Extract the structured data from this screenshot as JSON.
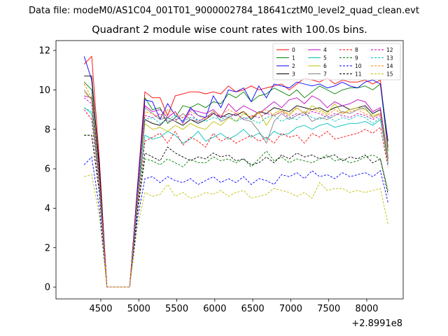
{
  "figure": {
    "suptitle": "Data file: modeM0/AS1C04_001T01_9000002784_18641cztM0_level2_quad_clean.evt",
    "offset_label": "+2.8991e8"
  },
  "chart_data": {
    "type": "line",
    "title": "Quadrant 2 module wise count rates with 100.0s bins.",
    "xlabel": "",
    "ylabel": "",
    "xlim": [
      3910,
      8480
    ],
    "ylim": [
      -0.6,
      12.5
    ],
    "xticks": [
      4500,
      5000,
      5500,
      6000,
      6500,
      7000,
      7500,
      8000
    ],
    "yticks": [
      0,
      2,
      4,
      6,
      8,
      10,
      12
    ],
    "grid": false,
    "legend": {
      "placement": "top-right",
      "columns": 4
    },
    "x": [
      4280,
      4380,
      4480,
      4580,
      4680,
      4780,
      4880,
      4980,
      5080,
      5180,
      5280,
      5380,
      5480,
      5580,
      5680,
      5780,
      5880,
      5980,
      6080,
      6180,
      6280,
      6380,
      6480,
      6580,
      6680,
      6780,
      6880,
      6980,
      7080,
      7180,
      7280,
      7380,
      7480,
      7580,
      7680,
      7780,
      7880,
      7980,
      8080,
      8180,
      8280
    ],
    "series": [
      {
        "name": "0",
        "color": "#ff0000",
        "dash": false,
        "values": [
          11.3,
          11.7,
          6.5,
          0,
          0,
          0,
          0,
          5.0,
          9.9,
          9.6,
          9.6,
          8.7,
          9.7,
          9.8,
          9.9,
          9.9,
          9.8,
          9.9,
          9.8,
          10.2,
          9.9,
          10.0,
          10.2,
          10.0,
          10.1,
          10.2,
          10.3,
          10.0,
          10.3,
          10.6,
          10.5,
          10.4,
          10.6,
          10.3,
          10.5,
          10.4,
          10.4,
          10.5,
          10.3,
          10.5,
          7.1
        ]
      },
      {
        "name": "1",
        "color": "#008000",
        "dash": false,
        "values": [
          10.4,
          10.0,
          5.6,
          0,
          0,
          0,
          0,
          4.8,
          9.6,
          9.0,
          9.1,
          8.3,
          8.6,
          9.2,
          9.1,
          9.3,
          9.1,
          9.4,
          9.3,
          9.8,
          9.6,
          9.9,
          9.4,
          9.7,
          9.8,
          10.1,
          9.9,
          9.7,
          10.0,
          9.6,
          9.9,
          10.2,
          10.0,
          9.8,
          10.0,
          10.1,
          10.1,
          10.2,
          10.0,
          10.3,
          6.9
        ]
      },
      {
        "name": "2",
        "color": "#0000ff",
        "dash": false,
        "values": [
          11.7,
          10.5,
          6.2,
          0,
          0,
          0,
          0,
          4.9,
          9.5,
          9.4,
          8.5,
          9.3,
          8.7,
          8.4,
          9.1,
          8.7,
          8.6,
          9.7,
          9.1,
          10.0,
          9.9,
          10.1,
          9.4,
          10.2,
          9.6,
          10.3,
          10.2,
          10.1,
          10.4,
          10.3,
          10.2,
          10.3,
          10.1,
          10.2,
          10.4,
          10.2,
          10.1,
          10.4,
          10.5,
          10.3,
          7.4
        ]
      },
      {
        "name": "3",
        "color": "#000000",
        "dash": false,
        "values": [
          10.7,
          10.7,
          6.0,
          0,
          0,
          0,
          0,
          4.6,
          8.5,
          8.3,
          8.2,
          8.6,
          8.4,
          8.2,
          8.5,
          8.3,
          8.5,
          8.8,
          8.6,
          8.8,
          8.7,
          8.9,
          8.5,
          8.9,
          8.8,
          9.1,
          9.0,
          8.9,
          9.2,
          9.1,
          9.0,
          9.1,
          8.9,
          9.1,
          9.2,
          9.0,
          9.1,
          9.2,
          8.8,
          9.0,
          6.6
        ]
      },
      {
        "name": "4",
        "color": "#bf00bf",
        "dash": false,
        "values": [
          9.7,
          9.6,
          5.5,
          0,
          0,
          0,
          0,
          4.5,
          9.2,
          8.9,
          9.0,
          8.6,
          8.9,
          8.3,
          9.0,
          8.9,
          8.8,
          9.0,
          8.6,
          9.3,
          8.9,
          9.2,
          9.0,
          8.8,
          9.1,
          9.4,
          9.1,
          9.5,
          9.6,
          9.3,
          9.7,
          9.5,
          9.1,
          9.4,
          9.2,
          9.3,
          9.5,
          9.4,
          8.9,
          9.1,
          6.5
        ]
      },
      {
        "name": "5",
        "color": "#00bfbf",
        "dash": false,
        "values": [
          9.1,
          8.8,
          5.3,
          0,
          0,
          0,
          0,
          4.3,
          7.7,
          7.5,
          7.6,
          7.9,
          7.7,
          7.3,
          7.5,
          7.9,
          7.4,
          7.6,
          7.8,
          7.5,
          7.7,
          8.0,
          7.6,
          7.8,
          7.5,
          7.9,
          7.7,
          7.8,
          8.1,
          8.2,
          8.0,
          8.2,
          8.3,
          8.1,
          8.2,
          8.3,
          8.3,
          8.4,
          8.2,
          8.5,
          6.3
        ]
      },
      {
        "name": "6",
        "color": "#bfbf00",
        "dash": false,
        "values": [
          9.9,
          9.5,
          5.4,
          0,
          0,
          0,
          0,
          4.4,
          8.3,
          8.0,
          8.1,
          7.9,
          8.2,
          8.0,
          8.3,
          8.1,
          8.0,
          8.4,
          8.2,
          8.6,
          8.4,
          8.8,
          8.6,
          8.9,
          8.2,
          8.8,
          9.0,
          8.7,
          9.1,
          8.8,
          9.2,
          9.0,
          8.8,
          9.3,
          8.8,
          9.0,
          9.1,
          9.0,
          8.7,
          8.8,
          6.4
        ]
      },
      {
        "name": "7",
        "color": "#808080",
        "dash": false,
        "values": [
          10.0,
          9.5,
          5.5,
          0,
          0,
          0,
          0,
          4.5,
          9.1,
          8.8,
          8.5,
          8.6,
          8.4,
          8.8,
          8.5,
          8.4,
          8.6,
          8.9,
          8.4,
          8.6,
          8.8,
          8.5,
          8.4,
          7.9,
          7.3,
          8.4,
          8.8,
          8.5,
          8.7,
          8.9,
          8.4,
          8.6,
          8.5,
          8.7,
          8.9,
          8.8,
          9.0,
          9.1,
          8.6,
          8.8,
          6.6
        ]
      },
      {
        "name": "8",
        "color": "#ff0000",
        "dash": true,
        "values": [
          9.0,
          8.5,
          5.0,
          0,
          0,
          0,
          0,
          4.0,
          7.4,
          7.6,
          7.8,
          7.3,
          7.9,
          7.2,
          7.6,
          7.4,
          7.1,
          7.8,
          7.4,
          7.6,
          7.3,
          7.5,
          7.7,
          7.4,
          7.6,
          7.3,
          7.8,
          7.6,
          7.7,
          7.3,
          7.8,
          7.6,
          7.9,
          7.5,
          7.6,
          7.7,
          7.8,
          8.0,
          7.8,
          8.1,
          6.1
        ]
      },
      {
        "name": "9",
        "color": "#008000",
        "dash": true,
        "values": [
          7.7,
          7.7,
          4.8,
          0,
          0,
          0,
          0,
          3.7,
          6.5,
          6.4,
          6.2,
          6.5,
          6.3,
          6.1,
          6.5,
          6.3,
          6.3,
          6.6,
          6.4,
          6.5,
          6.3,
          6.5,
          6.1,
          6.5,
          6.9,
          6.4,
          6.6,
          6.3,
          6.5,
          6.4,
          6.3,
          6.5,
          6.7,
          6.4,
          6.5,
          6.3,
          6.4,
          6.6,
          6.7,
          6.5,
          4.9
        ]
      },
      {
        "name": "10",
        "color": "#0000ff",
        "dash": true,
        "values": [
          6.2,
          6.6,
          4.0,
          0,
          0,
          0,
          0,
          3.4,
          5.5,
          5.6,
          5.3,
          5.6,
          5.4,
          5.3,
          5.5,
          5.2,
          5.4,
          5.6,
          5.3,
          5.5,
          5.3,
          5.6,
          5.2,
          5.5,
          5.4,
          5.2,
          5.7,
          5.6,
          5.8,
          5.5,
          5.9,
          5.6,
          5.7,
          5.5,
          5.8,
          5.6,
          5.7,
          5.8,
          5.6,
          5.9,
          4.3
        ]
      },
      {
        "name": "11",
        "color": "#000000",
        "dash": true,
        "values": [
          7.7,
          7.7,
          4.8,
          0,
          0,
          0,
          0,
          3.8,
          6.8,
          6.6,
          6.4,
          7.1,
          6.8,
          6.6,
          6.4,
          6.6,
          6.5,
          6.8,
          6.6,
          6.7,
          6.4,
          6.5,
          6.2,
          6.3,
          6.6,
          6.3,
          6.7,
          6.5,
          6.8,
          6.6,
          6.7,
          6.5,
          6.6,
          6.7,
          6.4,
          6.6,
          6.5,
          6.7,
          6.3,
          6.5,
          4.7
        ]
      },
      {
        "name": "12",
        "color": "#bf00bf",
        "dash": true,
        "values": [
          9.6,
          9.3,
          5.4,
          0,
          0,
          0,
          0,
          4.3,
          8.7,
          8.6,
          8.8,
          8.4,
          8.5,
          8.6,
          8.8,
          8.4,
          8.6,
          8.8,
          8.7,
          8.6,
          8.8,
          8.5,
          8.7,
          8.6,
          8.8,
          8.7,
          8.9,
          8.6,
          8.8,
          8.7,
          8.9,
          8.8,
          8.6,
          8.8,
          8.7,
          8.6,
          8.8,
          8.7,
          8.5,
          8.7,
          6.3
        ]
      },
      {
        "name": "13",
        "color": "#00bfbf",
        "dash": true,
        "values": [
          9.1,
          8.9,
          5.2,
          0,
          0,
          0,
          0,
          4.2,
          8.5,
          8.6,
          8.3,
          8.5,
          8.7,
          8.4,
          8.6,
          8.5,
          8.4,
          8.6,
          8.5,
          8.7,
          8.4,
          8.6,
          8.5,
          8.3,
          8.6,
          8.7,
          8.4,
          8.6,
          8.5,
          8.8,
          8.6,
          8.5,
          8.7,
          8.4,
          8.6,
          8.5,
          8.7,
          8.6,
          8.3,
          8.6,
          6.2
        ]
      },
      {
        "name": "14",
        "color": "#ff8000",
        "dash": true,
        "values": [
          10.3,
          9.6,
          5.6,
          0,
          0,
          0,
          0,
          4.5,
          8.9,
          8.8,
          8.6,
          9.0,
          8.8,
          8.6,
          8.9,
          8.7,
          8.5,
          8.9,
          8.7,
          9.0,
          8.8,
          8.9,
          8.6,
          8.8,
          9.0,
          8.7,
          8.9,
          8.8,
          9.1,
          8.8,
          9.0,
          8.9,
          8.7,
          9.0,
          8.8,
          8.9,
          9.0,
          8.8,
          8.6,
          8.8,
          6.4
        ]
      },
      {
        "name": "15",
        "color": "#bfbf00",
        "dash": true,
        "values": [
          5.6,
          5.7,
          3.6,
          0,
          0,
          0,
          0,
          3.0,
          4.8,
          4.6,
          4.7,
          5.2,
          4.6,
          4.8,
          4.5,
          4.6,
          4.8,
          4.7,
          4.9,
          4.6,
          4.8,
          4.9,
          4.5,
          4.6,
          4.7,
          5.0,
          4.9,
          4.8,
          4.6,
          4.8,
          4.5,
          5.3,
          4.9,
          5.0,
          5.0,
          4.8,
          4.9,
          4.8,
          4.9,
          5.0,
          3.2
        ]
      }
    ]
  }
}
